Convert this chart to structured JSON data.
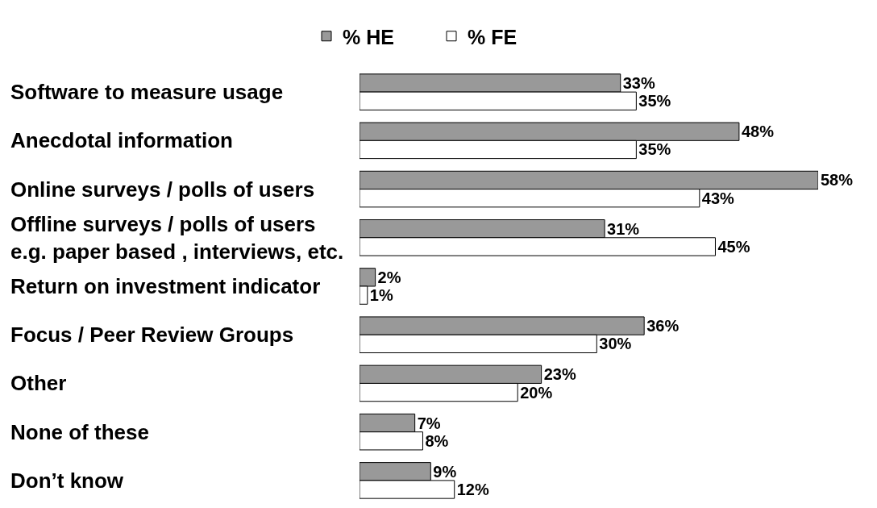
{
  "chart_data": {
    "type": "bar",
    "orientation": "horizontal",
    "categories": [
      "Software to measure usage",
      "Anecdotal information",
      "Online surveys / polls of users",
      "Offline surveys / polls of users\ne.g. paper based , interviews, etc.",
      "Return on investment indicator",
      "Focus / Peer Review Groups",
      "Other",
      "None of these",
      "Don’t know"
    ],
    "series": [
      {
        "name": "% HE",
        "color": "#999999",
        "values": [
          33,
          48,
          58,
          31,
          2,
          36,
          23,
          7,
          9
        ],
        "value_labels": [
          "33%",
          "48%",
          "58%",
          "31%",
          "2%",
          "36%",
          "23%",
          "7%",
          "9%"
        ]
      },
      {
        "name": "% FE",
        "color": "#ffffff",
        "values": [
          35,
          35,
          43,
          45,
          1,
          30,
          20,
          8,
          12
        ],
        "value_labels": [
          "35%",
          "35%",
          "43%",
          "45%",
          "1%",
          "30%",
          "20%",
          "8%",
          "12%"
        ]
      }
    ],
    "legend": "top",
    "tick_labels": "y"
  }
}
